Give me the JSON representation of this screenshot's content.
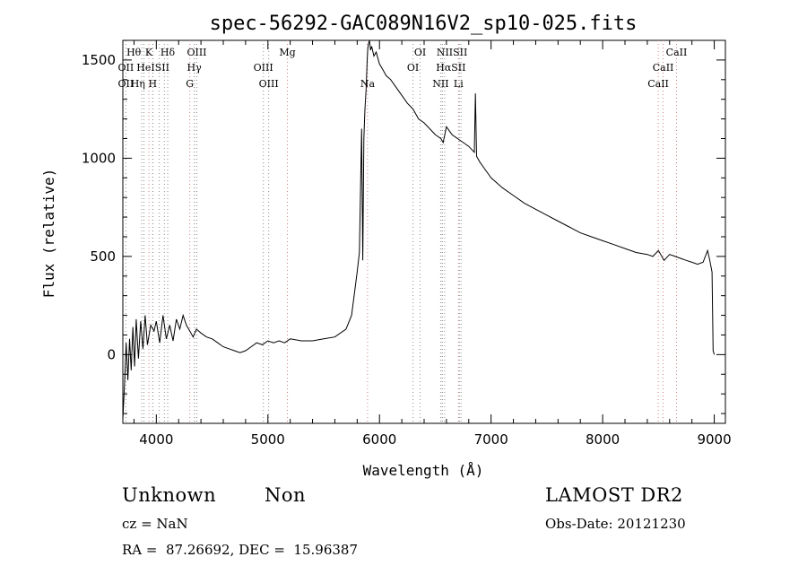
{
  "chart_data": {
    "type": "line",
    "title": "spec-56292-GAC089N16V2_sp10-025.fits",
    "xlabel": "Wavelength (Å)",
    "ylabel": "Flux (relative)",
    "xlim": [
      3700,
      9100
    ],
    "ylim": [
      -350,
      1600
    ],
    "xticks": [
      4000,
      5000,
      6000,
      7000,
      8000,
      9000
    ],
    "yticks": [
      0,
      500,
      1000,
      1500
    ],
    "grid": false,
    "series": [
      {
        "x": [
          3700,
          3715,
          3730,
          3745,
          3760,
          3775,
          3790,
          3805,
          3820,
          3840,
          3860,
          3880,
          3900,
          3920,
          3950,
          3980,
          4000,
          4030,
          4060,
          4090,
          4120,
          4150,
          4180,
          4210,
          4240,
          4270,
          4300,
          4330,
          4360,
          4400,
          4450,
          4500,
          4550,
          4600,
          4650,
          4700,
          4750,
          4800,
          4850,
          4900,
          4950,
          5000,
          5050,
          5100,
          5150,
          5200,
          5300,
          5400,
          5500,
          5600,
          5700,
          5750,
          5780,
          5800,
          5820,
          5840,
          5850,
          5860,
          5870,
          5880,
          5890,
          5895,
          5900,
          5910,
          5920,
          5930,
          5950,
          5970,
          6000,
          6030,
          6060,
          6100,
          6150,
          6200,
          6250,
          6300,
          6350,
          6400,
          6450,
          6500,
          6550,
          6570,
          6600,
          6650,
          6700,
          6750,
          6800,
          6850,
          6860,
          6870,
          6880,
          6900,
          6950,
          7000,
          7100,
          7200,
          7300,
          7400,
          7500,
          7600,
          7700,
          7800,
          7900,
          8000,
          8100,
          8200,
          8300,
          8400,
          8450,
          8500,
          8550,
          8600,
          8650,
          8700,
          8750,
          8800,
          8850,
          8900,
          8940,
          8960,
          8980,
          8990,
          9000
        ],
        "y": [
          -330,
          -150,
          60,
          -130,
          80,
          -80,
          140,
          -60,
          180,
          -20,
          170,
          30,
          200,
          50,
          150,
          120,
          170,
          60,
          200,
          80,
          150,
          70,
          180,
          130,
          200,
          150,
          120,
          90,
          130,
          110,
          90,
          80,
          60,
          40,
          30,
          20,
          10,
          20,
          40,
          60,
          50,
          70,
          60,
          70,
          60,
          80,
          70,
          70,
          80,
          90,
          130,
          200,
          330,
          420,
          520,
          1150,
          480,
          1100,
          1250,
          1350,
          1500,
          1560,
          1580,
          1600,
          1550,
          1570,
          1520,
          1540,
          1480,
          1450,
          1420,
          1400,
          1360,
          1320,
          1280,
          1250,
          1200,
          1180,
          1150,
          1120,
          1100,
          1080,
          1160,
          1120,
          1100,
          1080,
          1060,
          1030,
          1330,
          1010,
          1000,
          980,
          940,
          900,
          850,
          810,
          770,
          740,
          710,
          680,
          650,
          620,
          600,
          580,
          560,
          540,
          520,
          510,
          500,
          530,
          480,
          510,
          500,
          490,
          480,
          470,
          460,
          470,
          530,
          480,
          420,
          20,
          0
        ]
      }
    ],
    "lines": {
      "absorption": [
        3889,
        3933,
        3968,
        4102,
        4300,
        4341,
        5175,
        5893,
        6563,
        6708,
        8498,
        8542,
        8662
      ],
      "emission": [
        3727,
        3869,
        3889,
        3970,
        4026,
        4072,
        4102,
        4340,
        4363,
        4959,
        5007,
        6300,
        6364,
        6548,
        6563,
        6584,
        6716,
        6731
      ]
    },
    "line_labels": [
      {
        "text": "Hθ",
        "wl": 3798,
        "row": 1
      },
      {
        "text": "K",
        "wl": 3933,
        "row": 1
      },
      {
        "text": "Hδ",
        "wl": 4102,
        "row": 1
      },
      {
        "text": "OIII",
        "wl": 4363,
        "row": 1
      },
      {
        "text": "Mg",
        "wl": 5175,
        "row": 1
      },
      {
        "text": "OI",
        "wl": 6364,
        "row": 1
      },
      {
        "text": "NIISII",
        "wl": 6650,
        "row": 1
      },
      {
        "text": "CaII",
        "wl": 8662,
        "row": 1
      },
      {
        "text": "OII",
        "wl": 3727,
        "row": 2
      },
      {
        "text": "HeISII",
        "wl": 3970,
        "row": 2
      },
      {
        "text": "Hγ",
        "wl": 4340,
        "row": 2
      },
      {
        "text": "OIII",
        "wl": 4959,
        "row": 2
      },
      {
        "text": "OI",
        "wl": 6300,
        "row": 2
      },
      {
        "text": "HαSII",
        "wl": 6640,
        "row": 2
      },
      {
        "text": "CaII",
        "wl": 8542,
        "row": 2
      },
      {
        "text": "OII",
        "wl": 3727,
        "row": 3
      },
      {
        "text": "Hη",
        "wl": 3835,
        "row": 3
      },
      {
        "text": "H",
        "wl": 3968,
        "row": 3
      },
      {
        "text": "G",
        "wl": 4300,
        "row": 3
      },
      {
        "text": "OIII",
        "wl": 5007,
        "row": 3
      },
      {
        "text": "Na",
        "wl": 5893,
        "row": 3
      },
      {
        "text": "NII",
        "wl": 6548,
        "row": 3
      },
      {
        "text": "Li",
        "wl": 6708,
        "row": 3
      },
      {
        "text": "CaII",
        "wl": 8498,
        "row": 3
      }
    ]
  },
  "info": {
    "class": "Unknown",
    "subclass": "Non",
    "survey": "LAMOST DR2",
    "cz": "cz = NaN",
    "obs_date": "Obs-Date: 20121230",
    "coords": "RA =  87.26692, DEC =  15.96387"
  }
}
